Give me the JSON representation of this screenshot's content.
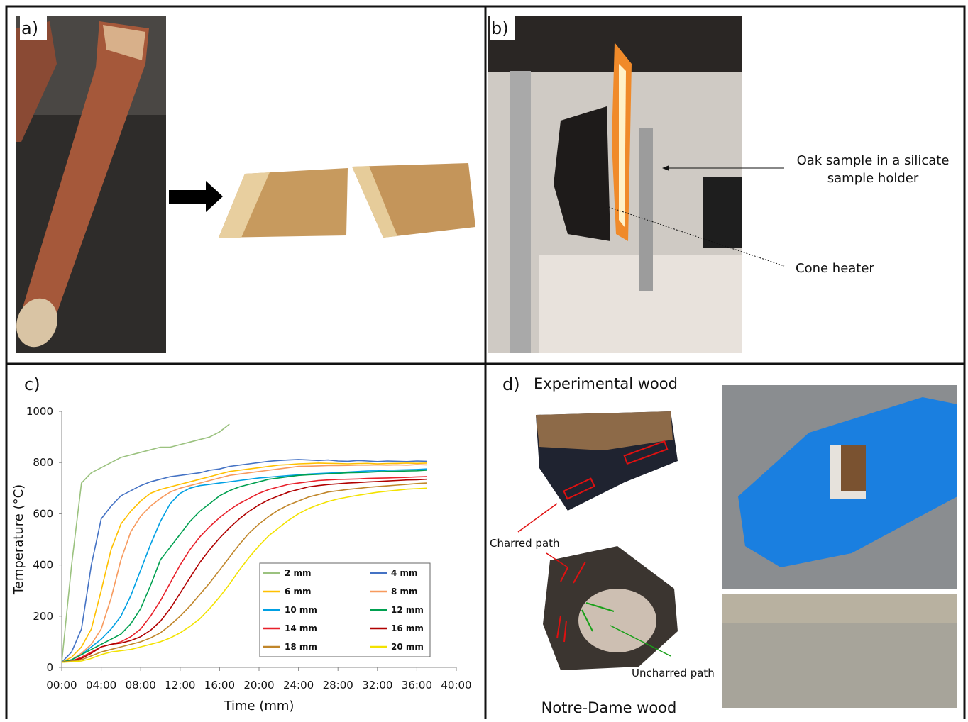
{
  "panels": {
    "a": {
      "label": "a)"
    },
    "b": {
      "label": "b)",
      "annotations": [
        "Oak sample in a silicate",
        "sample holder",
        "Cone heater"
      ]
    },
    "c": {
      "label": "c)"
    },
    "d": {
      "label": "d)",
      "annotations": [
        "Experimental wood",
        "Charred path",
        "Uncharred path",
        "Notre-Dame wood"
      ]
    }
  },
  "chart_data": {
    "type": "line",
    "xlabel": "Time (mm)",
    "ylabel": "Temperature (°C)",
    "x": [
      0,
      1,
      2,
      3,
      4,
      5,
      6,
      7,
      8,
      9,
      10,
      11,
      12,
      13,
      14,
      15,
      16,
      17,
      18,
      19,
      20,
      21,
      22,
      23,
      24,
      25,
      26,
      27,
      28,
      29,
      30,
      31,
      32,
      33,
      34,
      35,
      36,
      37
    ],
    "xlim": [
      0,
      40
    ],
    "xticks": [
      {
        "value": 0,
        "label": "00:00"
      },
      {
        "value": 4,
        "label": "04:00"
      },
      {
        "value": 8,
        "label": "08:00"
      },
      {
        "value": 12,
        "label": "12:00"
      },
      {
        "value": 16,
        "label": "16:00"
      },
      {
        "value": 20,
        "label": "20:00"
      },
      {
        "value": 24,
        "label": "24:00"
      },
      {
        "value": 28,
        "label": "28:00"
      },
      {
        "value": 32,
        "label": "32:00"
      },
      {
        "value": 36,
        "label": "36:00"
      },
      {
        "value": 40,
        "label": "40:00"
      }
    ],
    "ylim": [
      0,
      1000
    ],
    "yticks": [
      0,
      200,
      400,
      600,
      800,
      1000
    ],
    "grid": false,
    "legend": "lower right",
    "series": [
      {
        "name": "2 mm",
        "color": "#9bc27f",
        "values": [
          20,
          400,
          720,
          760,
          780,
          800,
          820,
          830,
          840,
          850,
          860,
          860,
          870,
          880,
          890,
          900,
          920,
          950,
          null,
          null,
          null,
          null,
          null,
          null,
          null,
          null,
          null,
          null,
          null,
          null,
          null,
          null,
          null,
          null,
          null,
          null,
          null,
          null
        ]
      },
      {
        "name": "4 mm",
        "color": "#4472c4",
        "values": [
          20,
          60,
          150,
          400,
          580,
          630,
          670,
          690,
          710,
          725,
          735,
          745,
          750,
          755,
          760,
          770,
          775,
          785,
          790,
          795,
          800,
          805,
          808,
          810,
          812,
          810,
          808,
          810,
          806,
          805,
          808,
          806,
          804,
          806,
          805,
          804,
          806,
          805
        ]
      },
      {
        "name": "6 mm",
        "color": "#ffc000",
        "values": [
          20,
          40,
          80,
          150,
          300,
          460,
          560,
          610,
          650,
          680,
          695,
          705,
          715,
          725,
          735,
          745,
          755,
          765,
          770,
          775,
          780,
          785,
          790,
          792,
          795,
          796,
          798,
          797,
          796,
          795,
          796,
          797,
          795,
          796,
          797,
          798,
          797,
          798
        ]
      },
      {
        "name": "8 mm",
        "color": "#f79a5e",
        "values": [
          20,
          30,
          55,
          90,
          150,
          270,
          420,
          530,
          590,
          630,
          660,
          685,
          700,
          710,
          720,
          730,
          740,
          750,
          755,
          760,
          765,
          770,
          775,
          780,
          785,
          786,
          787,
          788,
          788,
          789,
          790,
          790,
          791,
          790,
          791,
          790,
          792,
          791
        ]
      },
      {
        "name": "10 mm",
        "color": "#00a0e3",
        "values": [
          20,
          30,
          50,
          80,
          110,
          150,
          200,
          280,
          380,
          480,
          570,
          640,
          680,
          700,
          710,
          715,
          720,
          725,
          730,
          735,
          740,
          743,
          746,
          749,
          752,
          755,
          757,
          759,
          761,
          763,
          765,
          767,
          768,
          770,
          771,
          772,
          773,
          775
        ]
      },
      {
        "name": "12 mm",
        "color": "#00a050",
        "values": [
          20,
          30,
          50,
          70,
          90,
          110,
          130,
          170,
          230,
          320,
          420,
          470,
          520,
          570,
          610,
          640,
          670,
          690,
          705,
          715,
          725,
          735,
          740,
          745,
          750,
          752,
          754,
          756,
          758,
          760,
          761,
          762,
          764,
          765,
          766,
          767,
          768,
          770
        ]
      },
      {
        "name": "14 mm",
        "color": "#e8202a",
        "values": [
          20,
          25,
          40,
          60,
          80,
          90,
          100,
          120,
          150,
          200,
          260,
          330,
          400,
          460,
          510,
          550,
          585,
          615,
          640,
          660,
          680,
          695,
          705,
          715,
          720,
          725,
          730,
          732,
          734,
          735,
          736,
          738,
          739,
          740,
          741,
          742,
          744,
          745
        ]
      },
      {
        "name": "16 mm",
        "color": "#b00000",
        "values": [
          20,
          25,
          35,
          55,
          80,
          90,
          95,
          105,
          120,
          145,
          180,
          230,
          290,
          350,
          410,
          460,
          505,
          545,
          580,
          610,
          635,
          655,
          670,
          685,
          695,
          705,
          710,
          714,
          717,
          720,
          722,
          724,
          726,
          728,
          730,
          732,
          733,
          735
        ]
      },
      {
        "name": "18 mm",
        "color": "#c0862a",
        "values": [
          20,
          25,
          30,
          45,
          60,
          70,
          80,
          90,
          100,
          115,
          135,
          165,
          200,
          240,
          285,
          330,
          380,
          430,
          480,
          525,
          560,
          590,
          615,
          635,
          650,
          665,
          675,
          685,
          690,
          695,
          699,
          703,
          706,
          709,
          712,
          715,
          718,
          720
        ]
      },
      {
        "name": "20 mm",
        "color": "#f3e200",
        "values": [
          20,
          22,
          25,
          35,
          50,
          60,
          65,
          70,
          80,
          90,
          100,
          115,
          135,
          160,
          190,
          230,
          275,
          325,
          380,
          430,
          475,
          515,
          545,
          575,
          600,
          620,
          635,
          648,
          658,
          665,
          672,
          678,
          684,
          688,
          692,
          696,
          698,
          700
        ]
      }
    ]
  }
}
